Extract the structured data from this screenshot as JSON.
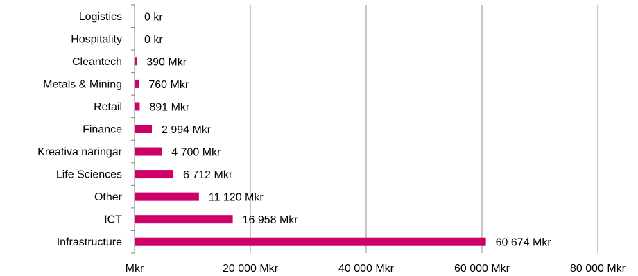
{
  "chart_data": {
    "type": "bar",
    "orientation": "horizontal",
    "categories": [
      "Logistics",
      "Hospitality",
      "Cleantech",
      "Metals & Mining",
      "Retail",
      "Finance",
      "Kreativa näringar",
      "Life Sciences",
      "Other",
      "ICT",
      "Infrastructure"
    ],
    "values": [
      0,
      0,
      390,
      760,
      891,
      2994,
      4700,
      6712,
      11120,
      16958,
      60674
    ],
    "data_labels": [
      "0 kr",
      "0 kr",
      "390 Mkr",
      "760 Mkr",
      "891 Mkr",
      "2 994 Mkr",
      "4 700 Mkr",
      "6 712 Mkr",
      "11 120 Mkr",
      "16 958 Mkr",
      "60 674 Mkr"
    ],
    "x_ticks": [
      0,
      20000,
      40000,
      60000,
      80000
    ],
    "x_tick_labels": [
      "Mkr",
      "20 000 Mkr",
      "40 000 Mkr",
      "60 000 Mkr",
      "80 000 Mkr"
    ],
    "xlim": [
      0,
      80000
    ],
    "title": "",
    "xlabel": "",
    "ylabel": "",
    "grid": "vertical",
    "legend": "none",
    "bar_color": "#cc0066"
  }
}
